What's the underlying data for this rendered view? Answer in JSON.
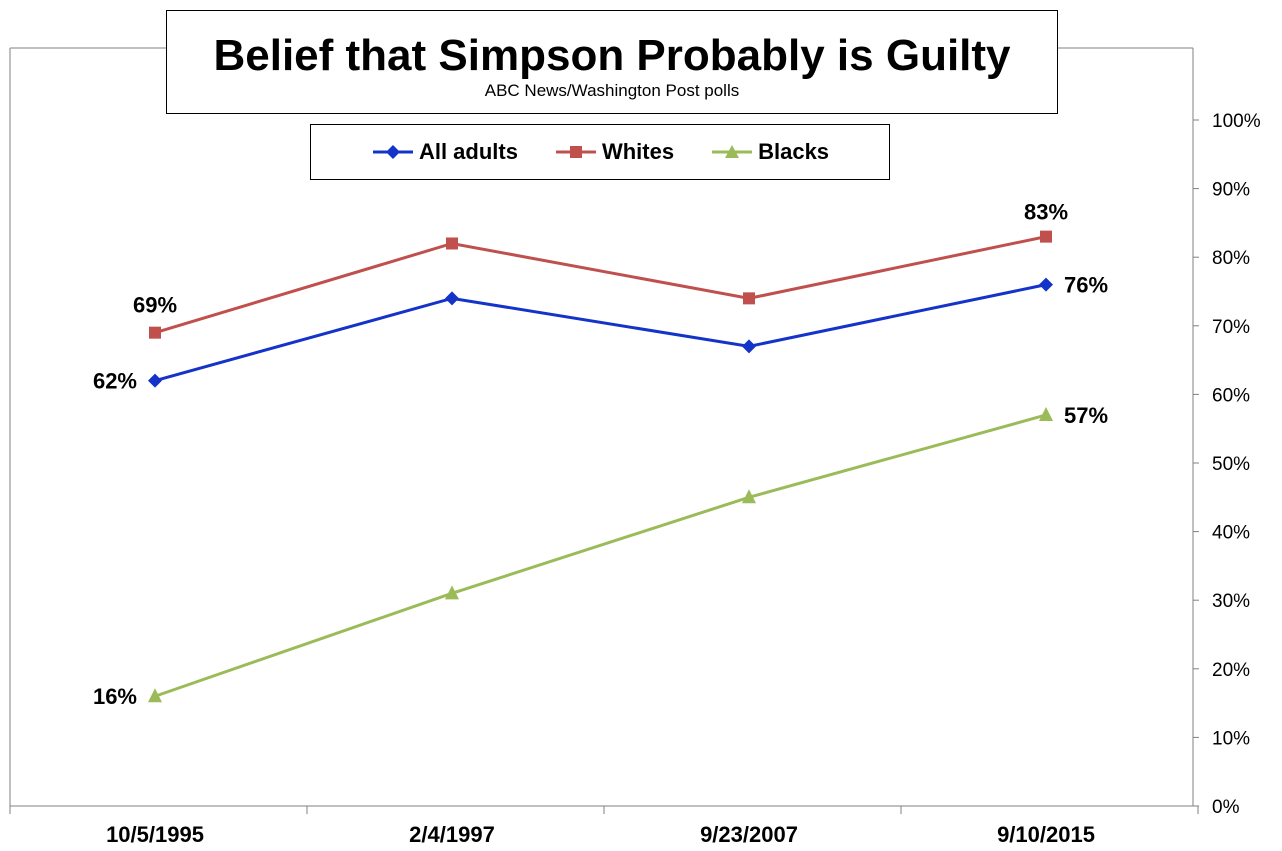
{
  "chart_data": {
    "type": "line",
    "title": "Belief that Simpson Probably is Guilty",
    "subtitle": "ABC News/Washington Post polls",
    "categories": [
      "10/5/1995",
      "2/4/1997",
      "9/23/2007",
      "9/10/2015"
    ],
    "yticks": [
      "0%",
      "10%",
      "20%",
      "30%",
      "40%",
      "50%",
      "60%",
      "70%",
      "80%",
      "90%",
      "100%"
    ],
    "ylim": [
      0,
      100
    ],
    "y_axis_side": "right",
    "grid": false,
    "legend_position": "top-center",
    "series": [
      {
        "name": "All adults",
        "values": [
          62,
          74,
          67,
          76
        ],
        "color": "#1433C8",
        "marker": "diamond",
        "labels": [
          "62%",
          "",
          "",
          "76%"
        ]
      },
      {
        "name": "Whites",
        "values": [
          69,
          82,
          74,
          83
        ],
        "color": "#C0504D",
        "marker": "square",
        "labels": [
          "69%",
          "",
          "",
          "83%"
        ]
      },
      {
        "name": "Blacks",
        "values": [
          16,
          31,
          45,
          57
        ],
        "color": "#9BBB59",
        "marker": "triangle",
        "labels": [
          "16%",
          "",
          "",
          "57%"
        ]
      }
    ]
  }
}
